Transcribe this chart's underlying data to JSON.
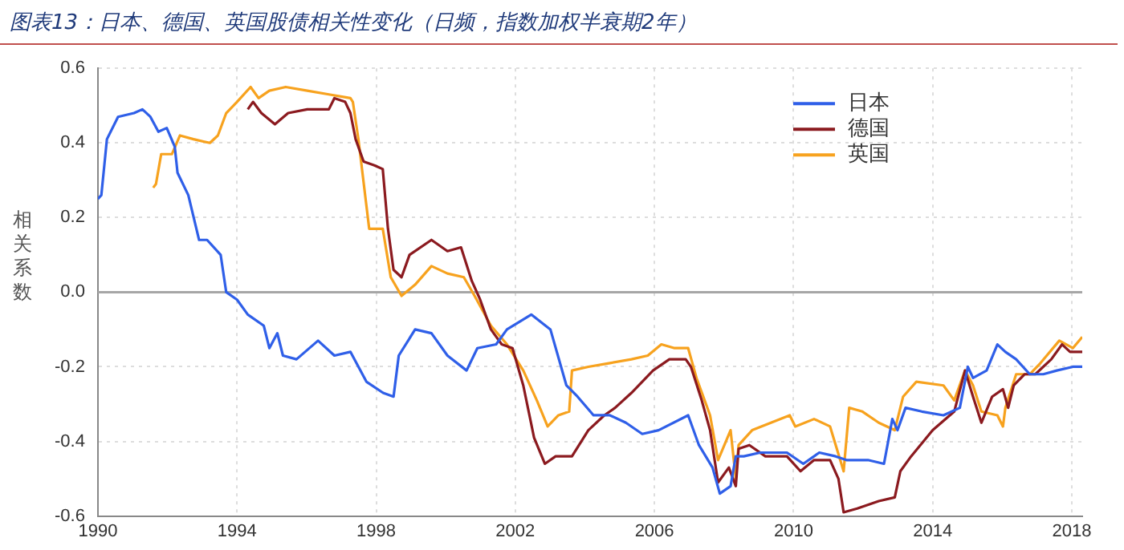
{
  "chart_data": {
    "type": "line",
    "title": "图表13：日本、德国、英国股债相关性变化（日频，指数加权半衰期2年）",
    "ylabel": "相关系数",
    "xlim": [
      1990,
      2018.3
    ],
    "xticks": [
      1990,
      1994,
      1998,
      2002,
      2006,
      2010,
      2014,
      2018
    ],
    "ylim": [
      -0.6,
      0.6
    ],
    "yticks": [
      {
        "value": -0.6,
        "label": "-0.6"
      },
      {
        "value": -0.4,
        "label": "-0.4"
      },
      {
        "value": -0.2,
        "label": "-0.2"
      },
      {
        "value": 0,
        "label": "0.0"
      },
      {
        "value": 0.2,
        "label": "0.2"
      },
      {
        "value": 0.4,
        "label": "0.4"
      },
      {
        "value": 0.6,
        "label": "0.6"
      }
    ],
    "grid": true,
    "legend": "top right",
    "marker": "none",
    "line_style": "solid",
    "ref_lines": [
      {
        "axis": "y",
        "value": 0,
        "color": "#a6a6a6"
      }
    ],
    "series": [
      {
        "name": "日本",
        "color": "#2f5fe8",
        "x": [
          1990.0,
          1990.1,
          1990.26,
          1990.58,
          1991.04,
          1991.28,
          1991.51,
          1991.74,
          1991.98,
          1992.21,
          1992.29,
          1992.6,
          1992.91,
          1993.14,
          1993.53,
          1993.69,
          1994.0,
          1994.31,
          1994.77,
          1994.93,
          1995.16,
          1995.32,
          1995.71,
          1996.33,
          1996.8,
          1997.26,
          1997.72,
          1998.2,
          1998.5,
          1998.65,
          1999.12,
          1999.59,
          2000.05,
          2000.6,
          2000.91,
          2001.45,
          2001.76,
          2002.46,
          2003.01,
          2003.47,
          2003.79,
          2004.25,
          2004.72,
          2005.18,
          2005.65,
          2006.12,
          2006.97,
          2007.28,
          2007.67,
          2007.88,
          2008.19,
          2008.34,
          2008.57,
          2009.04,
          2009.81,
          2010.28,
          2010.74,
          2011.21,
          2011.52,
          2012.14,
          2012.6,
          2012.84,
          2012.99,
          2013.22,
          2013.69,
          2014.31,
          2014.78,
          2015.01,
          2015.16,
          2015.55,
          2015.86,
          2016.09,
          2016.4,
          2016.79,
          2017.18,
          2017.57,
          2018.03,
          2018.3
        ],
        "values": [
          0.25,
          0.26,
          0.41,
          0.47,
          0.48,
          0.49,
          0.47,
          0.43,
          0.44,
          0.39,
          0.32,
          0.26,
          0.14,
          0.14,
          0.1,
          0.0,
          -0.02,
          -0.06,
          -0.09,
          -0.15,
          -0.11,
          -0.17,
          -0.18,
          -0.13,
          -0.17,
          -0.16,
          -0.24,
          -0.27,
          -0.28,
          -0.17,
          -0.1,
          -0.11,
          -0.17,
          -0.21,
          -0.15,
          -0.14,
          -0.1,
          -0.06,
          -0.1,
          -0.25,
          -0.28,
          -0.33,
          -0.33,
          -0.35,
          -0.38,
          -0.37,
          -0.33,
          -0.41,
          -0.47,
          -0.54,
          -0.52,
          -0.44,
          -0.44,
          -0.43,
          -0.43,
          -0.46,
          -0.43,
          -0.44,
          -0.45,
          -0.45,
          -0.46,
          -0.34,
          -0.37,
          -0.31,
          -0.32,
          -0.33,
          -0.31,
          -0.2,
          -0.23,
          -0.21,
          -0.14,
          -0.16,
          -0.18,
          -0.22,
          -0.22,
          -0.21,
          -0.2,
          -0.2
        ]
      },
      {
        "name": "德国",
        "color": "#8b1a1f",
        "x": [
          1994.31,
          1994.46,
          1994.7,
          1995.09,
          1995.47,
          1996.02,
          1996.64,
          1996.8,
          1997.11,
          1997.26,
          1997.41,
          1997.64,
          1997.95,
          1998.19,
          1998.34,
          1998.5,
          1998.73,
          1998.96,
          1999.59,
          2000.05,
          2000.44,
          2000.75,
          2000.99,
          2001.3,
          2001.61,
          2001.92,
          2002.23,
          2002.54,
          2002.85,
          2003.16,
          2003.63,
          2004.1,
          2004.56,
          2004.87,
          2005.34,
          2005.96,
          2006.43,
          2006.9,
          2007.05,
          2007.36,
          2007.6,
          2007.83,
          2008.14,
          2008.34,
          2008.42,
          2008.73,
          2009.19,
          2009.81,
          2010.2,
          2010.59,
          2011.05,
          2011.29,
          2011.44,
          2011.83,
          2012.45,
          2012.91,
          2013.07,
          2013.38,
          2014.0,
          2014.62,
          2014.93,
          2015.16,
          2015.4,
          2015.71,
          2016.02,
          2016.17,
          2016.33,
          2016.64,
          2016.95,
          2017.41,
          2017.72,
          2017.95,
          2018.3
        ],
        "values": [
          0.49,
          0.51,
          0.48,
          0.45,
          0.48,
          0.49,
          0.49,
          0.52,
          0.51,
          0.48,
          0.41,
          0.35,
          0.34,
          0.33,
          0.17,
          0.06,
          0.04,
          0.1,
          0.14,
          0.11,
          0.12,
          0.03,
          -0.02,
          -0.1,
          -0.14,
          -0.15,
          -0.25,
          -0.39,
          -0.46,
          -0.44,
          -0.44,
          -0.37,
          -0.33,
          -0.31,
          -0.27,
          -0.21,
          -0.18,
          -0.18,
          -0.2,
          -0.29,
          -0.37,
          -0.51,
          -0.47,
          -0.52,
          -0.42,
          -0.41,
          -0.44,
          -0.44,
          -0.48,
          -0.45,
          -0.45,
          -0.5,
          -0.59,
          -0.58,
          -0.56,
          -0.55,
          -0.48,
          -0.44,
          -0.37,
          -0.32,
          -0.21,
          -0.28,
          -0.35,
          -0.28,
          -0.26,
          -0.31,
          -0.25,
          -0.22,
          -0.22,
          -0.18,
          -0.14,
          -0.16,
          -0.16
        ]
      },
      {
        "name": "英国",
        "color": "#f7a21e",
        "x": [
          1991.59,
          1991.67,
          1991.82,
          1992.13,
          1992.36,
          1992.75,
          1993.22,
          1993.45,
          1993.69,
          1994.0,
          1994.39,
          1994.62,
          1994.93,
          1995.4,
          1996.02,
          1996.64,
          1997.26,
          1997.33,
          1997.49,
          1997.8,
          1998.19,
          1998.42,
          1998.73,
          1999.12,
          1999.59,
          2000.05,
          2000.52,
          2000.83,
          2001.3,
          2001.76,
          2002.23,
          2002.62,
          2002.93,
          2003.24,
          2003.55,
          2003.63,
          2004.1,
          2004.72,
          2005.34,
          2005.81,
          2006.2,
          2006.58,
          2006.97,
          2007.21,
          2007.6,
          2007.83,
          2008.19,
          2008.34,
          2008.42,
          2008.81,
          2009.35,
          2009.89,
          2010.05,
          2010.59,
          2011.05,
          2011.44,
          2011.6,
          2011.98,
          2012.45,
          2012.91,
          2013.15,
          2013.53,
          2014.31,
          2014.62,
          2014.93,
          2015.16,
          2015.4,
          2015.86,
          2016.02,
          2016.09,
          2016.4,
          2016.79,
          2017.1,
          2017.64,
          2018.03,
          2018.3
        ],
        "values": [
          0.28,
          0.29,
          0.37,
          0.37,
          0.42,
          0.41,
          0.4,
          0.42,
          0.48,
          0.51,
          0.55,
          0.52,
          0.54,
          0.55,
          0.54,
          0.53,
          0.52,
          0.51,
          0.41,
          0.17,
          0.17,
          0.04,
          -0.01,
          0.02,
          0.07,
          0.05,
          0.04,
          -0.01,
          -0.09,
          -0.14,
          -0.21,
          -0.29,
          -0.36,
          -0.33,
          -0.32,
          -0.21,
          -0.2,
          -0.19,
          -0.18,
          -0.17,
          -0.14,
          -0.15,
          -0.15,
          -0.23,
          -0.33,
          -0.45,
          -0.37,
          -0.5,
          -0.41,
          -0.37,
          -0.35,
          -0.33,
          -0.36,
          -0.34,
          -0.36,
          -0.48,
          -0.31,
          -0.32,
          -0.35,
          -0.37,
          -0.28,
          -0.24,
          -0.25,
          -0.29,
          -0.21,
          -0.25,
          -0.32,
          -0.33,
          -0.36,
          -0.31,
          -0.22,
          -0.22,
          -0.19,
          -0.13,
          -0.15,
          -0.12
        ]
      }
    ]
  }
}
